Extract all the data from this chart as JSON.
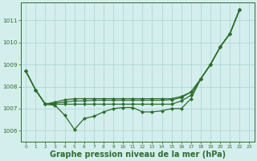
{
  "background_color": "#d4eeed",
  "grid_color": "#a8d4d0",
  "line_color": "#2d6e2d",
  "marker_color": "#2d6e2d",
  "xlabel": "Graphe pression niveau de la mer (hPa)",
  "xlabel_fontsize": 7.0,
  "ylim": [
    1005.5,
    1011.8
  ],
  "xlim": [
    -0.5,
    23.5
  ],
  "yticks": [
    1006,
    1007,
    1008,
    1009,
    1010,
    1011
  ],
  "xticks": [
    0,
    1,
    2,
    3,
    4,
    5,
    6,
    7,
    8,
    9,
    10,
    11,
    12,
    13,
    14,
    15,
    16,
    17,
    18,
    19,
    20,
    21,
    22,
    23
  ],
  "curve1_x": [
    0,
    1,
    2,
    3,
    4,
    5,
    6,
    7,
    8,
    9,
    10,
    11,
    12,
    13,
    14,
    15,
    16,
    17,
    18,
    19,
    20,
    21,
    22
  ],
  "curve1_y": [
    1008.7,
    1007.85,
    1007.2,
    1007.15,
    1006.7,
    1006.05,
    1006.55,
    1006.65,
    1006.85,
    1007.0,
    1007.05,
    1007.05,
    1006.85,
    1006.85,
    1006.9,
    1007.0,
    1007.0,
    1007.45,
    1008.35,
    1009.0,
    1009.8,
    1010.4,
    1011.5
  ],
  "curve2_x": [
    0,
    1,
    2,
    3,
    4,
    5,
    6,
    7,
    8,
    9,
    10,
    11,
    12,
    13,
    14,
    15,
    16,
    17,
    18,
    19,
    20,
    21,
    22
  ],
  "curve2_y": [
    1008.7,
    1007.85,
    1007.2,
    1007.3,
    1007.4,
    1007.45,
    1007.45,
    1007.45,
    1007.45,
    1007.45,
    1007.45,
    1007.45,
    1007.45,
    1007.45,
    1007.45,
    1007.45,
    1007.55,
    1007.75,
    1008.35,
    1009.0,
    1009.8,
    1010.4,
    1011.5
  ],
  "curve3_x": [
    0,
    1,
    2,
    3,
    4,
    5,
    6,
    7,
    8,
    9,
    10,
    11,
    12,
    13,
    14,
    15,
    16,
    17,
    18,
    19,
    20,
    21,
    22
  ],
  "curve3_y": [
    1008.7,
    1007.85,
    1007.2,
    1007.25,
    1007.3,
    1007.35,
    1007.35,
    1007.38,
    1007.38,
    1007.38,
    1007.38,
    1007.38,
    1007.38,
    1007.38,
    1007.38,
    1007.4,
    1007.5,
    1007.75,
    1008.35,
    1009.0,
    1009.8,
    1010.4,
    1011.5
  ],
  "curve4_x": [
    0,
    1,
    2,
    3,
    4,
    5,
    6,
    7,
    8,
    9,
    10,
    11,
    12,
    13,
    14,
    15,
    16,
    17,
    18,
    19,
    20,
    21,
    22
  ],
  "curve4_y": [
    1008.7,
    1007.85,
    1007.2,
    1007.2,
    1007.2,
    1007.2,
    1007.2,
    1007.2,
    1007.2,
    1007.2,
    1007.2,
    1007.2,
    1007.2,
    1007.2,
    1007.2,
    1007.2,
    1007.35,
    1007.6,
    1008.35,
    1009.0,
    1009.8,
    1010.4,
    1011.5
  ]
}
